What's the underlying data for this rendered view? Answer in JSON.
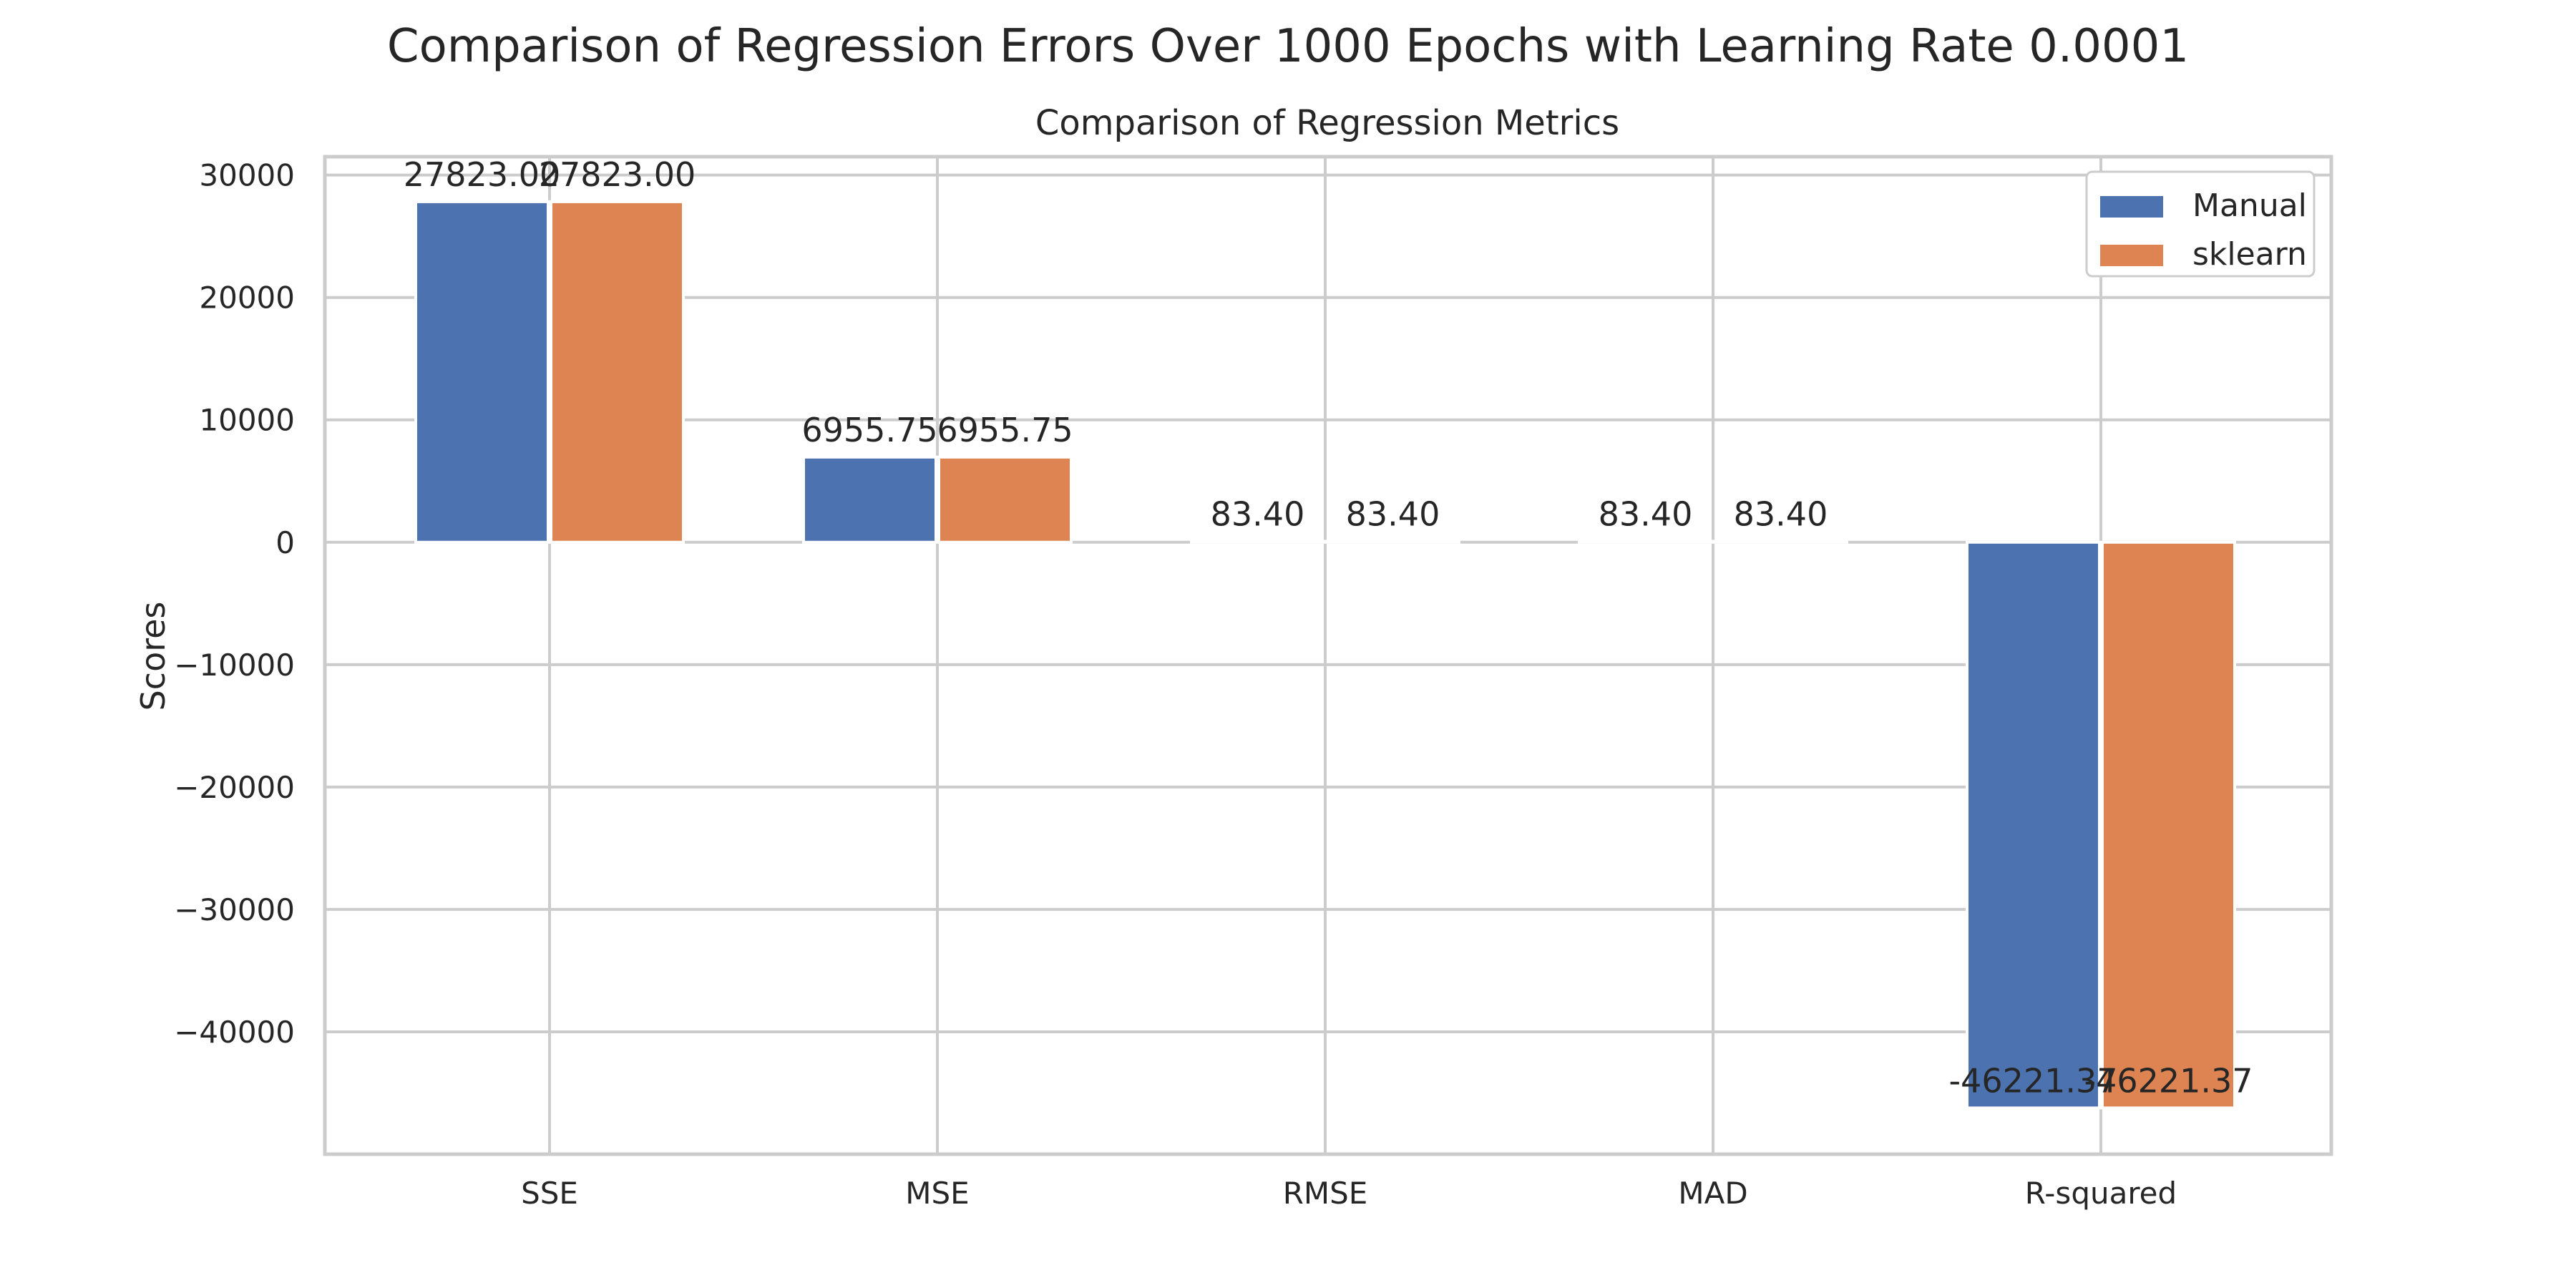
{
  "figure": {
    "suptitle": "Comparison of Regression Errors Over 1000 Epochs with Learning Rate 0.0001"
  },
  "chart_data": {
    "type": "bar",
    "title": "Comparison of Regression Metrics",
    "xlabel": "",
    "ylabel": "Scores",
    "categories": [
      "SSE",
      "MSE",
      "RMSE",
      "MAD",
      "R-squared"
    ],
    "series": [
      {
        "name": "Manual",
        "color": "#4c72b0",
        "values": [
          27823.0,
          6955.75,
          83.4,
          83.4,
          -46221.37
        ],
        "labels": [
          "27823.00",
          "6955.75",
          "83.40",
          "83.40",
          "-46221.37"
        ]
      },
      {
        "name": "sklearn",
        "color": "#dd8452",
        "values": [
          27823.0,
          6955.75,
          83.4,
          83.4,
          -46221.37
        ],
        "labels": [
          "27823.00",
          "6955.75",
          "83.40",
          "83.40",
          "-46221.37"
        ]
      }
    ],
    "ylim": [
      -50000,
      31500
    ],
    "yticks": [
      30000,
      20000,
      10000,
      0,
      -10000,
      -20000,
      -30000,
      -40000
    ],
    "ytick_labels": [
      "30000",
      "20000",
      "10000",
      "0",
      "−10000",
      "−20000",
      "−30000",
      "−40000"
    ],
    "grid": true,
    "legend_position": "top-right"
  }
}
